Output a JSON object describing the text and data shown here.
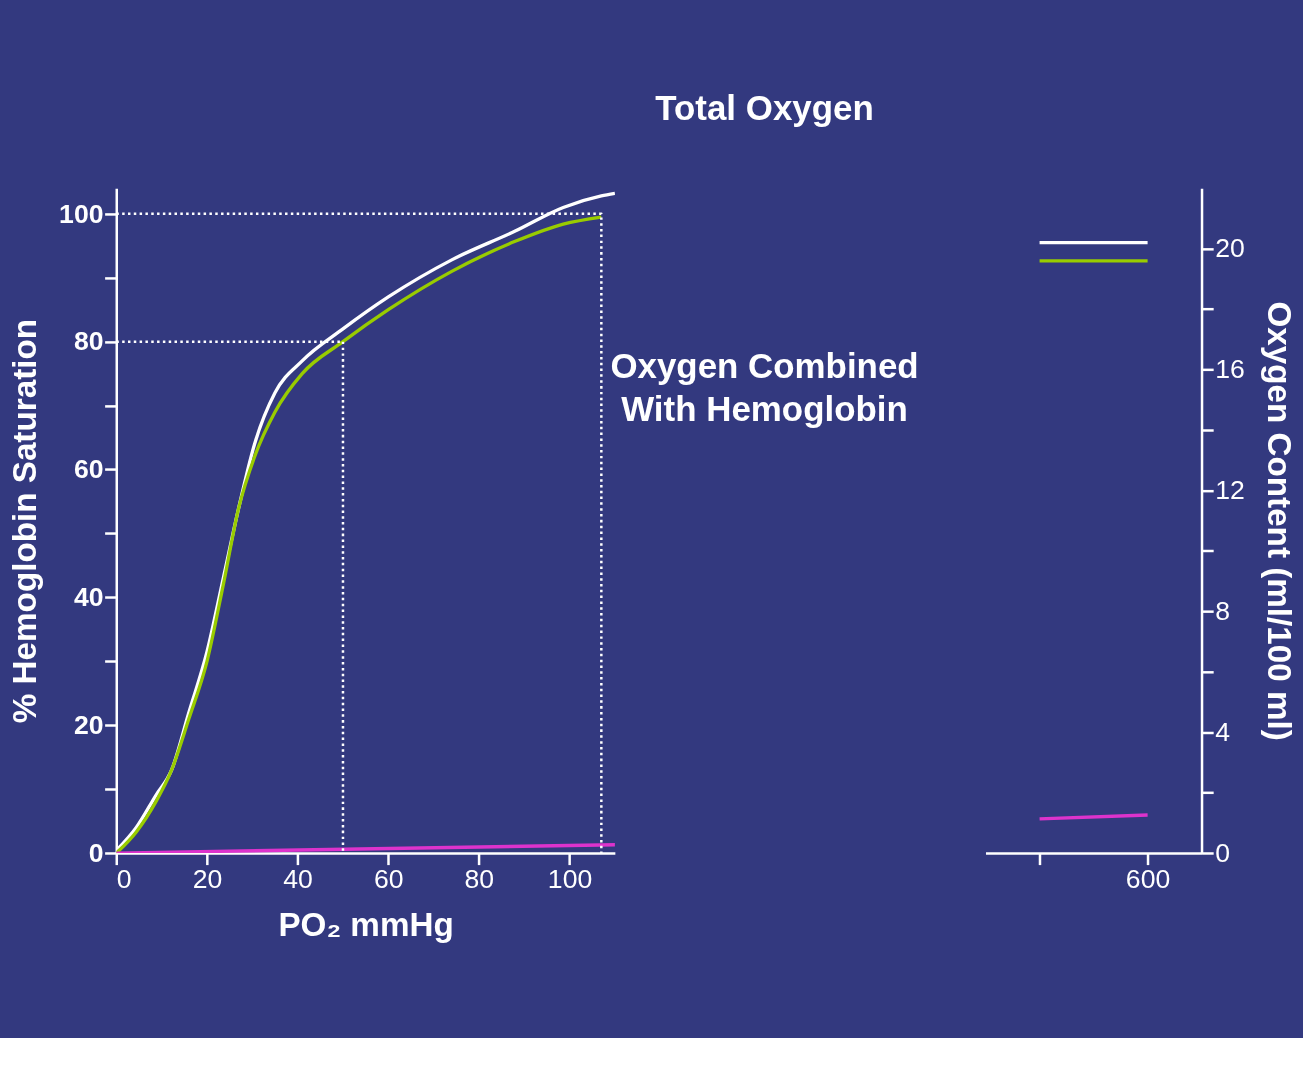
{
  "chart_data": [
    {
      "type": "line",
      "xlabel": "PO₂  mmHg",
      "ylabel": "% Hemoglobin Saturation",
      "xlim": [
        0,
        110
      ],
      "ylim": [
        0,
        104
      ],
      "xticks": [
        0,
        20,
        40,
        60,
        80,
        100
      ],
      "yticks": [
        0,
        {
          "value": 10,
          "label": null
        },
        20,
        {
          "value": 30,
          "label": null
        },
        40,
        {
          "value": 50,
          "label": null
        },
        60,
        {
          "value": 70,
          "label": null
        },
        80,
        {
          "value": 90,
          "label": null
        },
        100
      ],
      "grid": false,
      "annotations": [
        "Total Oxygen",
        "Oxygen Combined With Hemoglobin"
      ],
      "series": [
        {
          "color": "#ffffff",
          "x": [
            0,
            4.4,
            8.7,
            12.2,
            16,
            20,
            23.6,
            27,
            30.5,
            35,
            41,
            50,
            60,
            74,
            88,
            98.6,
            107,
            110
          ],
          "values": [
            0.4,
            4,
            9,
            13,
            22,
            31.5,
            43,
            54,
            64,
            72,
            77,
            82,
            87,
            92.8,
            97.3,
            101,
            102.8,
            103.2
          ]
        },
        {
          "color": "#99cc00",
          "x": [
            0,
            4.4,
            8.7,
            12.2,
            16,
            20,
            23.6,
            27,
            30.5,
            35,
            41,
            50,
            60,
            74,
            88,
            98.6,
            107
          ],
          "values": [
            0,
            3.3,
            8,
            13,
            21,
            30,
            42,
            54,
            62,
            69,
            75,
            80,
            85,
            91,
            95.7,
            98.4,
            99.5
          ]
        },
        {
          "color": "#dd33cc",
          "x": [
            0,
            110
          ],
          "values": [
            0,
            1.3
          ]
        },
        {
          "color": "#ffffff",
          "line_style": "dotted",
          "x": [
            0,
            107,
            107
          ],
          "values": [
            100,
            100,
            0
          ]
        },
        {
          "color": "#ffffff",
          "line_style": "dotted",
          "x": [
            0,
            50,
            50
          ],
          "values": [
            80,
            80,
            0
          ]
        }
      ]
    },
    {
      "type": "line",
      "ylabel": "Oxygen Content (ml/100 ml)",
      "categories": [
        null,
        "600"
      ],
      "ylim": [
        0,
        22
      ],
      "yticks": [
        0,
        {
          "value": 2,
          "label": null
        },
        4,
        {
          "value": 6,
          "label": null
        },
        8,
        {
          "value": 10,
          "label": null
        },
        12,
        {
          "value": 14,
          "label": null
        },
        16,
        {
          "value": 18,
          "label": null
        },
        20
      ],
      "grid": false,
      "series": [
        {
          "color": "#ffffff",
          "values": [
            20.2,
            20.2
          ]
        },
        {
          "color": "#99cc00",
          "values": [
            19.6,
            19.6
          ]
        },
        {
          "color": "#dd33cc",
          "values": [
            1.13,
            1.26
          ]
        }
      ]
    }
  ]
}
